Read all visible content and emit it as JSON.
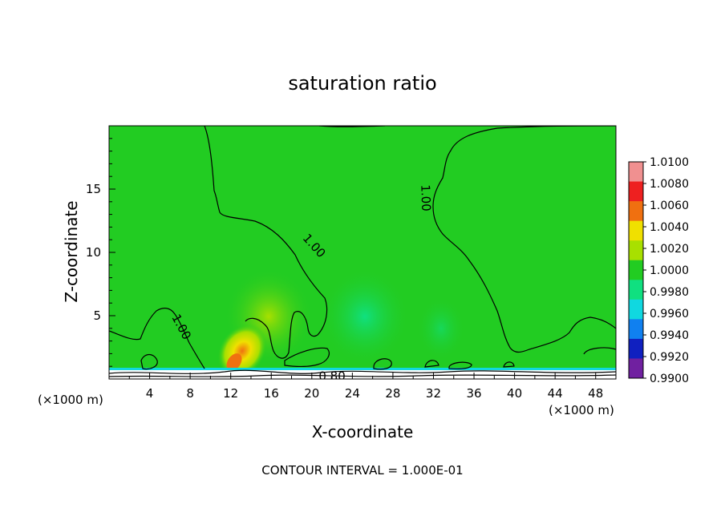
{
  "chart_data": {
    "type": "heatmap",
    "title": "saturation ratio",
    "xlabel": "X-coordinate",
    "ylabel": "Z-coordinate",
    "x_unit": "(×1000 m)",
    "y_unit": "(×1000 m)",
    "xlim": [
      0,
      50
    ],
    "ylim": [
      0,
      20
    ],
    "x_ticks": [
      4,
      8,
      12,
      16,
      20,
      24,
      28,
      32,
      36,
      40,
      44,
      48
    ],
    "y_ticks": [
      5,
      10,
      15
    ],
    "footer": "CONTOUR INTERVAL = 1.000E-01",
    "contour_labels": [
      {
        "text": "1.00",
        "x": 20.2,
        "y": 10.5,
        "angle": 48
      },
      {
        "text": "1.00",
        "x": 31.2,
        "y": 14.3,
        "angle": 88
      },
      {
        "text": "1.00",
        "x": 7.1,
        "y": 4.1,
        "angle": 62
      },
      {
        "text": "0.80",
        "x": 22.0,
        "y": 0.2,
        "angle": 0
      }
    ],
    "colorbar": {
      "values": [
        "1.0100",
        "1.0080",
        "1.0060",
        "1.0040",
        "1.0020",
        "1.0000",
        "0.9980",
        "0.9960",
        "0.9940",
        "0.9920",
        "0.9900"
      ],
      "colors": [
        "#f09090",
        "#ee2020",
        "#f07010",
        "#f0e000",
        "#a8e000",
        "#22cc22",
        "#10e080",
        "#10d8e0",
        "#1080f0",
        "#1020c0",
        "#7020a0"
      ]
    },
    "colors": {
      "field": "#22cc22",
      "contour": "#000000"
    }
  }
}
